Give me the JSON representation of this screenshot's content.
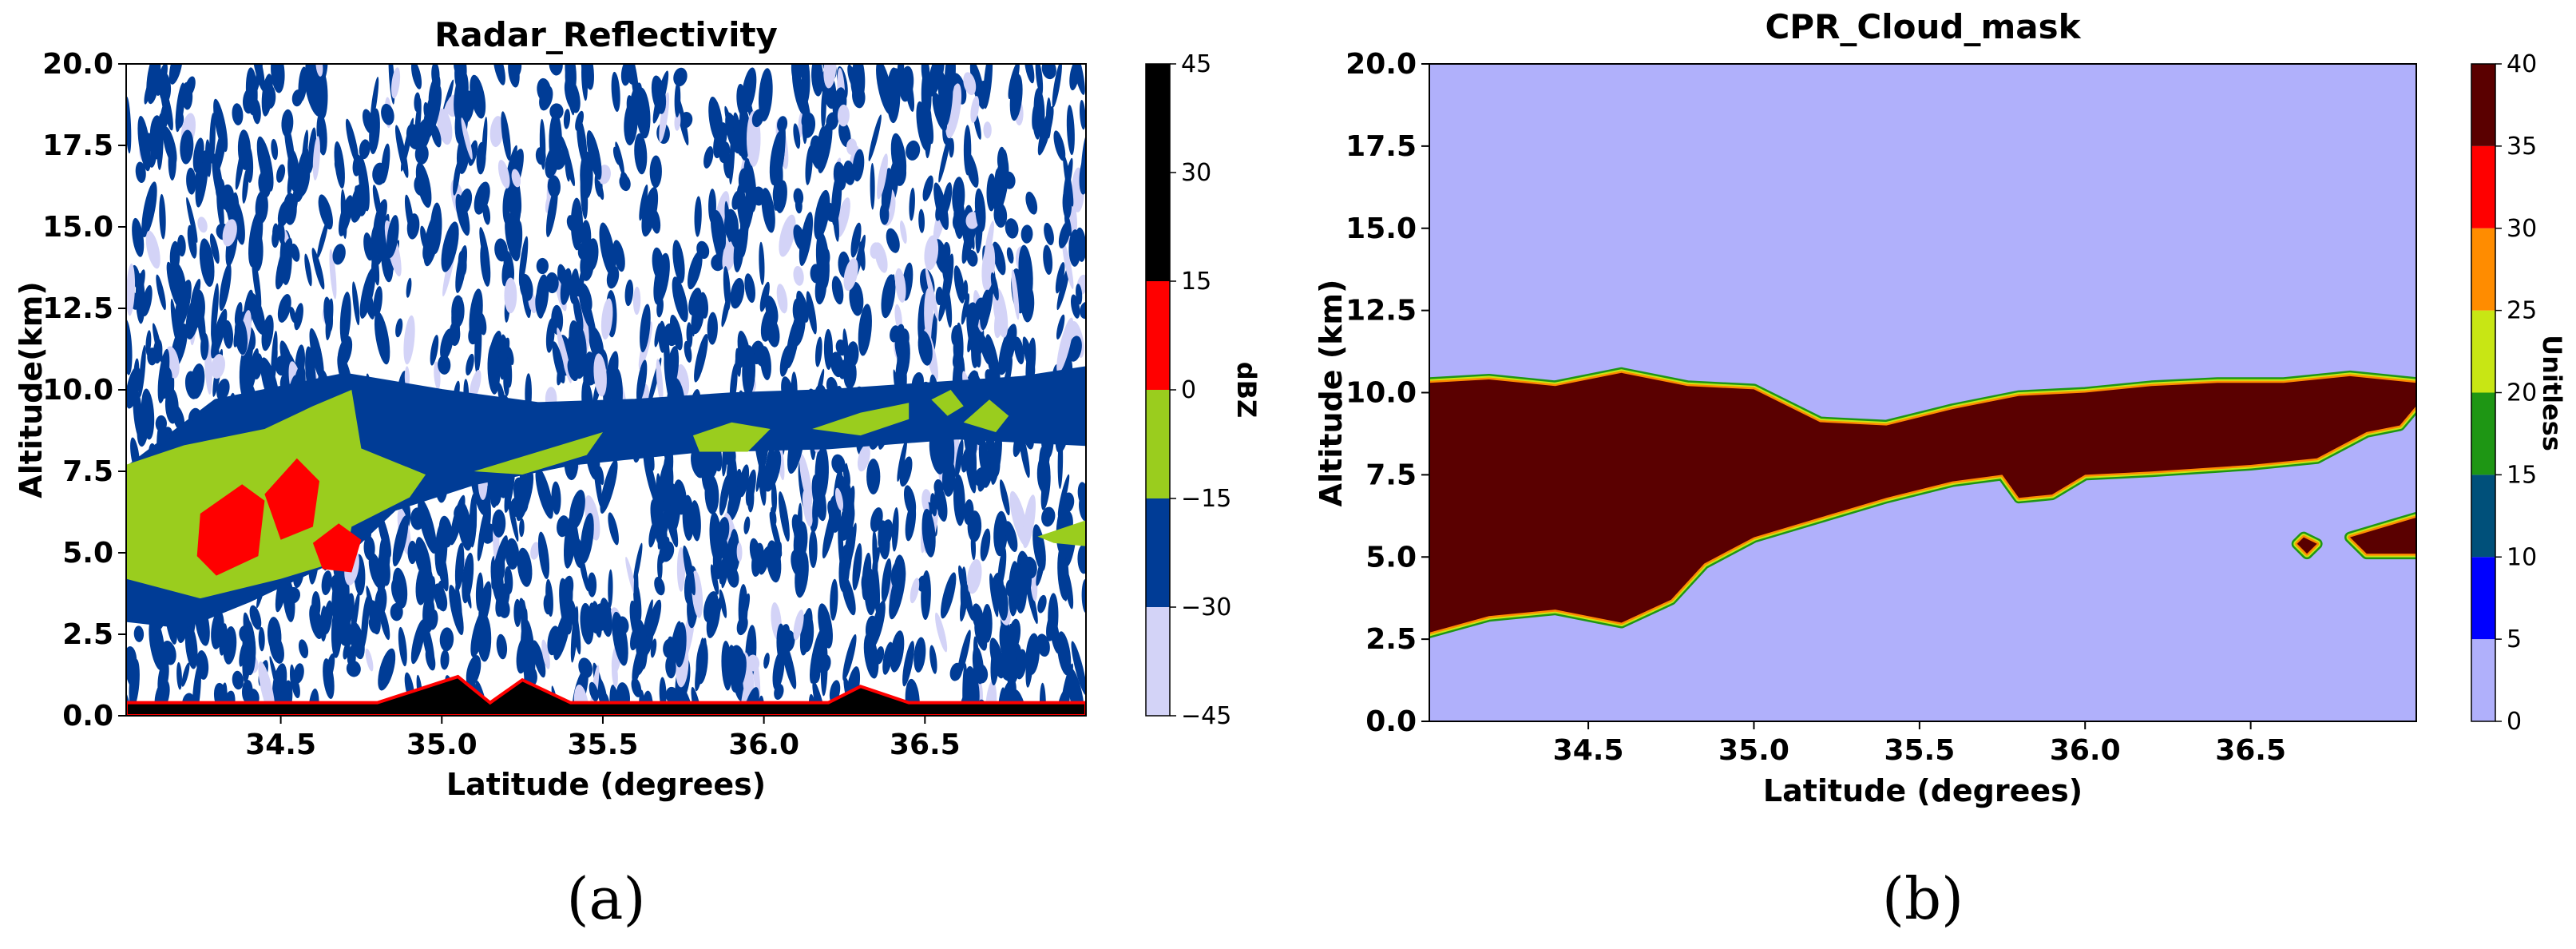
{
  "panels": [
    {
      "caption": "(a)",
      "chart_data": {
        "type": "heatmap",
        "title": "Radar_Reflectivity",
        "xlabel": "Latitude (degrees)",
        "ylabel": "Altitude(km)",
        "xlim": [
          34.02,
          37.0
        ],
        "ylim": [
          0.0,
          20.0
        ],
        "xticks": [
          "34.5",
          "35.0",
          "35.5",
          "36.0",
          "36.5"
        ],
        "xtick_values": [
          34.5,
          35.0,
          35.5,
          36.0,
          36.5
        ],
        "yticks": [
          "0.0",
          "2.5",
          "5.0",
          "7.5",
          "10.0",
          "12.5",
          "15.0",
          "17.5",
          "20.0"
        ],
        "ytick_values": [
          0.0,
          2.5,
          5.0,
          7.5,
          10.0,
          12.5,
          15.0,
          17.5,
          20.0
        ],
        "colorbar": {
          "label": "dBZ",
          "ticks": [
            "−45",
            "−30",
            "−15",
            "0",
            "15",
            "30",
            "45"
          ],
          "tick_values": [
            -45,
            -30,
            -15,
            0,
            15,
            30,
            45
          ],
          "levels": [
            {
              "from": -45,
              "to": -30,
              "color": "#d3d3f7"
            },
            {
              "from": -30,
              "to": -15,
              "color": "#003c96"
            },
            {
              "from": -15,
              "to": 0,
              "color": "#9acd1e"
            },
            {
              "from": 0,
              "to": 15,
              "color": "#ff0000"
            },
            {
              "from": 15,
              "to": 45,
              "color": "#000000"
            }
          ]
        },
        "background_color": "#ffffff",
        "features": [
          {
            "name": "cloud-band-edge",
            "level": -30,
            "color": "#003c96",
            "outline": [
              [
                34.02,
                7.5
              ],
              [
                34.3,
                9.6
              ],
              [
                34.7,
                10.4
              ],
              [
                35.0,
                9.9
              ],
              [
                35.3,
                9.5
              ],
              [
                35.6,
                9.6
              ],
              [
                35.9,
                9.8
              ],
              [
                36.2,
                9.9
              ],
              [
                36.5,
                10.1
              ],
              [
                36.8,
                10.3
              ],
              [
                37.0,
                10.6
              ],
              [
                37.0,
                8.4
              ],
              [
                36.6,
                8.6
              ],
              [
                36.2,
                8.3
              ],
              [
                35.8,
                8.2
              ],
              [
                35.4,
                7.8
              ],
              [
                35.1,
                7.2
              ],
              [
                34.85,
                6.4
              ],
              [
                34.7,
                5.0
              ],
              [
                34.4,
                3.6
              ],
              [
                34.2,
                2.8
              ],
              [
                34.02,
                3.0
              ]
            ]
          },
          {
            "name": "convective-core",
            "level": -15,
            "color": "#9acd1e",
            "outline": [
              [
                34.02,
                7.7
              ],
              [
                34.2,
                8.3
              ],
              [
                34.45,
                8.8
              ],
              [
                34.6,
                9.5
              ],
              [
                34.72,
                10.0
              ],
              [
                34.75,
                8.2
              ],
              [
                34.95,
                7.4
              ],
              [
                34.9,
                6.7
              ],
              [
                34.72,
                5.8
              ],
              [
                34.7,
                4.8
              ],
              [
                34.5,
                4.2
              ],
              [
                34.25,
                3.6
              ],
              [
                34.02,
                4.2
              ]
            ]
          },
          {
            "name": "anvil-patch-1",
            "level": -15,
            "color": "#9acd1e",
            "outline": [
              [
                35.1,
                7.5
              ],
              [
                35.3,
                8.1
              ],
              [
                35.5,
                8.7
              ],
              [
                35.45,
                8.0
              ],
              [
                35.25,
                7.4
              ]
            ]
          },
          {
            "name": "anvil-patch-2",
            "level": -15,
            "color": "#9acd1e",
            "outline": [
              [
                35.78,
                8.6
              ],
              [
                35.9,
                9.0
              ],
              [
                36.02,
                8.8
              ],
              [
                35.95,
                8.1
              ],
              [
                35.8,
                8.1
              ]
            ]
          },
          {
            "name": "anvil-patch-3",
            "level": -15,
            "color": "#9acd1e",
            "outline": [
              [
                36.15,
                8.8
              ],
              [
                36.3,
                9.3
              ],
              [
                36.45,
                9.6
              ],
              [
                36.45,
                9.1
              ],
              [
                36.3,
                8.6
              ]
            ]
          },
          {
            "name": "anvil-patch-4",
            "level": -15,
            "color": "#9acd1e",
            "outline": [
              [
                36.52,
                9.7
              ],
              [
                36.58,
                10.0
              ],
              [
                36.62,
                9.5
              ],
              [
                36.57,
                9.2
              ]
            ]
          },
          {
            "name": "anvil-patch-5",
            "level": -15,
            "color": "#9acd1e",
            "outline": [
              [
                36.62,
                9.0
              ],
              [
                36.7,
                9.7
              ],
              [
                36.76,
                9.2
              ],
              [
                36.72,
                8.7
              ]
            ]
          },
          {
            "name": "lower-layer-patch",
            "level": -15,
            "color": "#9acd1e",
            "outline": [
              [
                36.85,
                5.5
              ],
              [
                37.0,
                6.0
              ],
              [
                37.0,
                5.2
              ],
              [
                36.9,
                5.3
              ]
            ]
          },
          {
            "name": "red-core-1",
            "level": 0,
            "color": "#ff0000",
            "outline": [
              [
                34.25,
                6.2
              ],
              [
                34.38,
                7.1
              ],
              [
                34.45,
                6.6
              ],
              [
                34.43,
                4.9
              ],
              [
                34.3,
                4.3
              ],
              [
                34.24,
                4.9
              ]
            ]
          },
          {
            "name": "red-core-2",
            "level": 0,
            "color": "#ff0000",
            "outline": [
              [
                34.45,
                6.8
              ],
              [
                34.55,
                7.9
              ],
              [
                34.62,
                7.2
              ],
              [
                34.6,
                5.8
              ],
              [
                34.5,
                5.4
              ]
            ]
          },
          {
            "name": "red-core-3",
            "level": 0,
            "color": "#ff0000",
            "outline": [
              [
                34.6,
                5.3
              ],
              [
                34.68,
                5.9
              ],
              [
                34.75,
                5.4
              ],
              [
                34.72,
                4.4
              ],
              [
                34.63,
                4.5
              ]
            ]
          }
        ],
        "surface_clutter": {
          "level": 15,
          "color": "#000000",
          "top_km": 0.4
        }
      }
    },
    {
      "caption": "(b)",
      "chart_data": {
        "type": "heatmap",
        "title": "CPR_Cloud_mask",
        "xlabel": "Latitude (degrees)",
        "ylabel": "Altitude (km)",
        "xlim": [
          34.02,
          37.0
        ],
        "ylim": [
          0.0,
          20.0
        ],
        "xticks": [
          "34.5",
          "35.0",
          "35.5",
          "36.0",
          "36.5"
        ],
        "xtick_values": [
          34.5,
          35.0,
          35.5,
          36.0,
          36.5
        ],
        "yticks": [
          "0.0",
          "2.5",
          "5.0",
          "7.5",
          "10.0",
          "12.5",
          "15.0",
          "17.5",
          "20.0"
        ],
        "ytick_values": [
          0.0,
          2.5,
          5.0,
          7.5,
          10.0,
          12.5,
          15.0,
          17.5,
          20.0
        ],
        "colorbar": {
          "label": "Unitless",
          "ticks": [
            "0",
            "5",
            "10",
            "15",
            "20",
            "25",
            "30",
            "35",
            "40"
          ],
          "tick_values": [
            0,
            5,
            10,
            15,
            20,
            25,
            30,
            35,
            40
          ],
          "levels": [
            {
              "from": 0,
              "to": 5,
              "color": "#b0b0fb"
            },
            {
              "from": 5,
              "to": 10,
              "color": "#0000ff"
            },
            {
              "from": 10,
              "to": 15,
              "color": "#00507a"
            },
            {
              "from": 15,
              "to": 20,
              "color": "#1e9614"
            },
            {
              "from": 20,
              "to": 25,
              "color": "#c8e614"
            },
            {
              "from": 25,
              "to": 30,
              "color": "#ff8c00"
            },
            {
              "from": 30,
              "to": 35,
              "color": "#ff0000"
            },
            {
              "from": 35,
              "to": 40,
              "color": "#5a0000"
            }
          ]
        },
        "background_color": "#b0b0fb",
        "features": [
          {
            "name": "cloud-mask-main",
            "level": 40,
            "color": "#5a0000",
            "outline": [
              [
                34.02,
                10.3
              ],
              [
                34.2,
                10.4
              ],
              [
                34.4,
                10.2
              ],
              [
                34.6,
                10.6
              ],
              [
                34.8,
                10.2
              ],
              [
                35.0,
                10.1
              ],
              [
                35.2,
                9.1
              ],
              [
                35.4,
                9.0
              ],
              [
                35.6,
                9.5
              ],
              [
                35.8,
                9.9
              ],
              [
                36.0,
                10.0
              ],
              [
                36.2,
                10.2
              ],
              [
                36.4,
                10.3
              ],
              [
                36.6,
                10.3
              ],
              [
                36.8,
                10.5
              ],
              [
                37.0,
                10.3
              ],
              [
                37.0,
                9.6
              ],
              [
                36.95,
                9.0
              ],
              [
                36.85,
                8.8
              ],
              [
                36.7,
                8.0
              ],
              [
                36.5,
                7.8
              ],
              [
                36.2,
                7.6
              ],
              [
                36.0,
                7.5
              ],
              [
                35.9,
                6.9
              ],
              [
                35.8,
                6.8
              ],
              [
                35.75,
                7.5
              ],
              [
                35.6,
                7.3
              ],
              [
                35.4,
                6.8
              ],
              [
                35.2,
                6.2
              ],
              [
                35.0,
                5.6
              ],
              [
                34.85,
                4.8
              ],
              [
                34.75,
                3.7
              ],
              [
                34.6,
                3.0
              ],
              [
                34.4,
                3.4
              ],
              [
                34.2,
                3.2
              ],
              [
                34.02,
                2.7
              ]
            ]
          },
          {
            "name": "cloud-mask-small-1",
            "level": 40,
            "color": "#5a0000",
            "outline": [
              [
                36.64,
                5.4
              ],
              [
                36.66,
                5.6
              ],
              [
                36.7,
                5.4
              ],
              [
                36.67,
                5.1
              ]
            ]
          },
          {
            "name": "cloud-mask-small-2",
            "level": 40,
            "color": "#5a0000",
            "outline": [
              [
                36.8,
                5.6
              ],
              [
                36.9,
                5.9
              ],
              [
                37.0,
                6.2
              ],
              [
                37.0,
                5.1
              ],
              [
                36.85,
                5.1
              ]
            ]
          }
        ]
      }
    }
  ]
}
